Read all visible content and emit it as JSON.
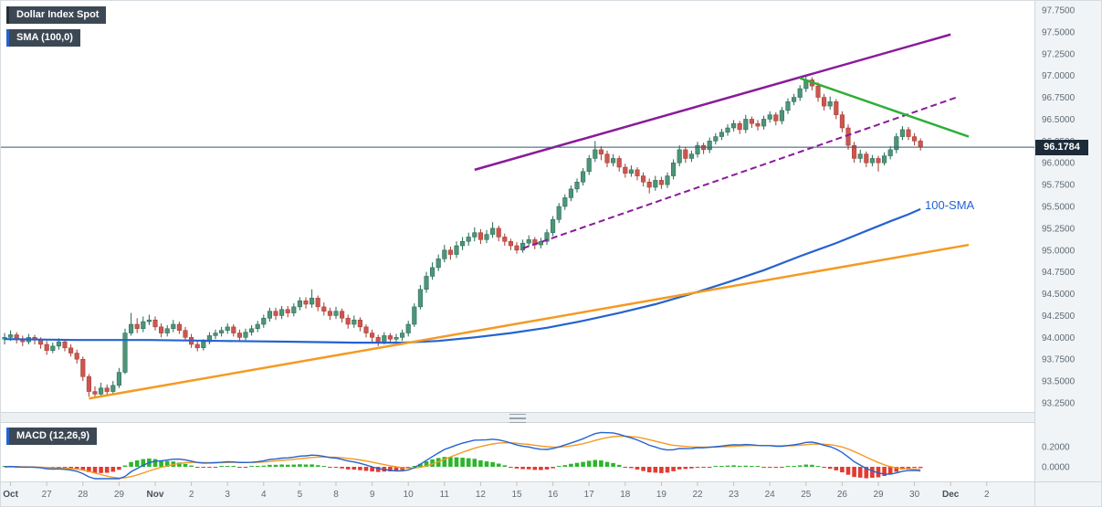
{
  "badges": {
    "symbol": "Dollar Index Spot",
    "sma": "SMA (100,0)",
    "macd": "MACD (12,26,9)"
  },
  "price_badge": {
    "value": "96.1784"
  },
  "annotations": {
    "sma_label": {
      "text": "100-SMA"
    }
  },
  "chart_data": {
    "type": "candlestick",
    "title": "Dollar Index Spot",
    "panels": [
      "price",
      "macd"
    ],
    "price_axis": {
      "max": 97.75,
      "min": 93.25,
      "ticks": [
        "97.7500",
        "97.5000",
        "97.2500",
        "97.0000",
        "96.7500",
        "96.5000",
        "96.2500",
        "96.0000",
        "95.7500",
        "95.5000",
        "95.2500",
        "95.0000",
        "94.7500",
        "94.5000",
        "94.2500",
        "94.0000",
        "93.7500",
        "93.5000",
        "93.2500"
      ]
    },
    "x_axis": {
      "labels": [
        {
          "t": "Oct",
          "i": 1,
          "m": true
        },
        {
          "t": "27",
          "i": 7
        },
        {
          "t": "28",
          "i": 13
        },
        {
          "t": "29",
          "i": 19
        },
        {
          "t": "Nov",
          "i": 25,
          "m": true
        },
        {
          "t": "2",
          "i": 31
        },
        {
          "t": "3",
          "i": 37
        },
        {
          "t": "4",
          "i": 43
        },
        {
          "t": "5",
          "i": 49
        },
        {
          "t": "8",
          "i": 55
        },
        {
          "t": "9",
          "i": 61
        },
        {
          "t": "10",
          "i": 67
        },
        {
          "t": "11",
          "i": 73
        },
        {
          "t": "12",
          "i": 79
        },
        {
          "t": "15",
          "i": 85
        },
        {
          "t": "16",
          "i": 91
        },
        {
          "t": "17",
          "i": 97
        },
        {
          "t": "18",
          "i": 103
        },
        {
          "t": "19",
          "i": 109
        },
        {
          "t": "22",
          "i": 115
        },
        {
          "t": "23",
          "i": 121
        },
        {
          "t": "24",
          "i": 127
        },
        {
          "t": "25",
          "i": 133
        },
        {
          "t": "26",
          "i": 139
        },
        {
          "t": "29",
          "i": 145
        },
        {
          "t": "30",
          "i": 151
        },
        {
          "t": "Dec",
          "i": 157,
          "m": true
        },
        {
          "t": "2",
          "i": 163
        }
      ]
    },
    "colors": {
      "up_fill": "#4e9478",
      "up_stroke": "#226752",
      "down_fill": "#cc564e",
      "down_stroke": "#a23830"
    },
    "candles": [
      [
        93.98,
        94.05,
        93.92,
        94.0
      ],
      [
        94.0,
        94.08,
        93.96,
        94.03
      ],
      [
        94.03,
        94.06,
        93.93,
        93.98
      ],
      [
        93.98,
        94.02,
        93.9,
        93.95
      ],
      [
        93.95,
        94.04,
        93.92,
        94.0
      ],
      [
        94.0,
        94.03,
        93.92,
        93.97
      ],
      [
        93.97,
        94.0,
        93.87,
        93.92
      ],
      [
        93.92,
        93.96,
        93.8,
        93.85
      ],
      [
        93.85,
        93.94,
        93.82,
        93.9
      ],
      [
        93.9,
        93.99,
        93.86,
        93.95
      ],
      [
        93.95,
        93.98,
        93.84,
        93.88
      ],
      [
        93.88,
        93.92,
        93.78,
        93.82
      ],
      [
        93.82,
        93.86,
        93.7,
        93.75
      ],
      [
        93.75,
        93.78,
        93.5,
        93.55
      ],
      [
        93.55,
        93.58,
        93.32,
        93.38
      ],
      [
        93.38,
        93.44,
        93.3,
        93.35
      ],
      [
        93.35,
        93.48,
        93.33,
        93.42
      ],
      [
        93.42,
        93.46,
        93.34,
        93.38
      ],
      [
        93.38,
        93.5,
        93.35,
        93.45
      ],
      [
        93.45,
        93.65,
        93.42,
        93.6
      ],
      [
        93.6,
        94.1,
        93.58,
        94.05
      ],
      [
        94.05,
        94.28,
        94.02,
        94.15
      ],
      [
        94.15,
        94.22,
        94.05,
        94.1
      ],
      [
        94.1,
        94.24,
        94.06,
        94.18
      ],
      [
        94.18,
        94.26,
        94.14,
        94.2
      ],
      [
        94.2,
        94.24,
        94.08,
        94.12
      ],
      [
        94.12,
        94.16,
        94.0,
        94.05
      ],
      [
        94.05,
        94.14,
        94.01,
        94.1
      ],
      [
        94.1,
        94.2,
        94.06,
        94.15
      ],
      [
        94.15,
        94.18,
        94.04,
        94.08
      ],
      [
        94.08,
        94.12,
        93.96,
        94.0
      ],
      [
        94.0,
        94.04,
        93.88,
        93.92
      ],
      [
        93.92,
        93.96,
        93.84,
        93.88
      ],
      [
        93.88,
        93.98,
        93.85,
        93.95
      ],
      [
        93.95,
        94.06,
        93.92,
        94.02
      ],
      [
        94.02,
        94.09,
        93.98,
        94.05
      ],
      [
        94.05,
        94.12,
        94.01,
        94.08
      ],
      [
        94.08,
        94.16,
        94.04,
        94.12
      ],
      [
        94.12,
        94.15,
        94.01,
        94.05
      ],
      [
        94.05,
        94.09,
        93.96,
        94.0
      ],
      [
        94.0,
        94.1,
        93.97,
        94.06
      ],
      [
        94.06,
        94.14,
        94.02,
        94.1
      ],
      [
        94.1,
        94.19,
        94.06,
        94.15
      ],
      [
        94.15,
        94.26,
        94.11,
        94.22
      ],
      [
        94.22,
        94.34,
        94.18,
        94.3
      ],
      [
        94.3,
        94.34,
        94.2,
        94.25
      ],
      [
        94.25,
        94.36,
        94.21,
        94.32
      ],
      [
        94.32,
        94.36,
        94.23,
        94.28
      ],
      [
        94.28,
        94.39,
        94.24,
        94.35
      ],
      [
        94.35,
        94.46,
        94.31,
        94.42
      ],
      [
        94.42,
        94.46,
        94.33,
        94.38
      ],
      [
        94.38,
        94.55,
        94.34,
        94.45
      ],
      [
        94.45,
        94.48,
        94.3,
        94.35
      ],
      [
        94.35,
        94.4,
        94.25,
        94.3
      ],
      [
        94.3,
        94.34,
        94.2,
        94.25
      ],
      [
        94.25,
        94.35,
        94.21,
        94.3
      ],
      [
        94.3,
        94.33,
        94.17,
        94.22
      ],
      [
        94.22,
        94.26,
        94.1,
        94.15
      ],
      [
        94.15,
        94.25,
        94.11,
        94.2
      ],
      [
        94.2,
        94.23,
        94.07,
        94.12
      ],
      [
        94.12,
        94.15,
        94.0,
        94.05
      ],
      [
        94.05,
        94.09,
        93.95,
        94.0
      ],
      [
        94.0,
        94.03,
        93.9,
        93.95
      ],
      [
        93.95,
        94.06,
        93.92,
        94.02
      ],
      [
        94.02,
        94.05,
        93.93,
        93.98
      ],
      [
        93.98,
        94.04,
        93.94,
        94.0
      ],
      [
        94.0,
        94.09,
        93.96,
        94.05
      ],
      [
        94.05,
        94.19,
        94.01,
        94.15
      ],
      [
        94.15,
        94.39,
        94.12,
        94.35
      ],
      [
        94.35,
        94.6,
        94.32,
        94.55
      ],
      [
        94.55,
        94.75,
        94.51,
        94.7
      ],
      [
        94.7,
        94.86,
        94.66,
        94.8
      ],
      [
        94.8,
        94.95,
        94.76,
        94.9
      ],
      [
        94.9,
        95.06,
        94.86,
        95.0
      ],
      [
        95.0,
        95.04,
        94.89,
        94.95
      ],
      [
        94.95,
        95.1,
        94.91,
        95.05
      ],
      [
        95.05,
        95.15,
        95.0,
        95.1
      ],
      [
        95.1,
        95.2,
        95.05,
        95.15
      ],
      [
        95.15,
        95.26,
        95.1,
        95.2
      ],
      [
        95.2,
        95.24,
        95.07,
        95.12
      ],
      [
        95.12,
        95.23,
        95.08,
        95.18
      ],
      [
        95.18,
        95.32,
        95.14,
        95.25
      ],
      [
        95.25,
        95.28,
        95.1,
        95.15
      ],
      [
        95.15,
        95.19,
        95.05,
        95.1
      ],
      [
        95.1,
        95.13,
        95.0,
        95.05
      ],
      [
        95.05,
        95.09,
        94.96,
        95.0
      ],
      [
        95.0,
        95.12,
        94.97,
        95.08
      ],
      [
        95.08,
        95.17,
        95.04,
        95.12
      ],
      [
        95.12,
        95.15,
        95.01,
        95.06
      ],
      [
        95.06,
        95.14,
        95.02,
        95.1
      ],
      [
        95.1,
        95.24,
        95.06,
        95.2
      ],
      [
        95.2,
        95.39,
        95.16,
        95.35
      ],
      [
        95.35,
        95.54,
        95.31,
        95.5
      ],
      [
        95.5,
        95.64,
        95.46,
        95.6
      ],
      [
        95.6,
        95.74,
        95.56,
        95.7
      ],
      [
        95.7,
        95.82,
        95.66,
        95.78
      ],
      [
        95.78,
        95.94,
        95.74,
        95.9
      ],
      [
        95.9,
        96.09,
        95.86,
        96.05
      ],
      [
        96.05,
        96.25,
        96.01,
        96.15
      ],
      [
        96.15,
        96.19,
        96.03,
        96.1
      ],
      [
        96.1,
        96.14,
        95.95,
        96.0
      ],
      [
        96.0,
        96.1,
        95.96,
        96.05
      ],
      [
        96.05,
        96.08,
        95.9,
        95.95
      ],
      [
        95.95,
        95.99,
        95.83,
        95.88
      ],
      [
        95.88,
        95.97,
        95.84,
        95.92
      ],
      [
        95.92,
        95.95,
        95.8,
        95.85
      ],
      [
        95.85,
        95.89,
        95.73,
        95.78
      ],
      [
        95.78,
        95.82,
        95.65,
        95.72
      ],
      [
        95.72,
        95.85,
        95.68,
        95.8
      ],
      [
        95.8,
        95.84,
        95.7,
        95.75
      ],
      [
        95.75,
        95.89,
        95.71,
        95.85
      ],
      [
        95.85,
        96.04,
        95.81,
        96.0
      ],
      [
        96.0,
        96.2,
        95.96,
        96.15
      ],
      [
        96.15,
        96.18,
        96.0,
        96.05
      ],
      [
        96.05,
        96.14,
        96.01,
        96.1
      ],
      [
        96.1,
        96.24,
        96.06,
        96.2
      ],
      [
        96.2,
        96.23,
        96.1,
        96.15
      ],
      [
        96.15,
        96.29,
        96.11,
        96.25
      ],
      [
        96.25,
        96.34,
        96.21,
        96.3
      ],
      [
        96.3,
        96.39,
        96.26,
        96.35
      ],
      [
        96.35,
        96.44,
        96.31,
        96.4
      ],
      [
        96.4,
        96.49,
        96.36,
        96.45
      ],
      [
        96.45,
        96.48,
        96.33,
        96.38
      ],
      [
        96.38,
        96.55,
        96.34,
        96.5
      ],
      [
        96.5,
        96.53,
        96.4,
        96.45
      ],
      [
        96.45,
        96.49,
        96.37,
        96.42
      ],
      [
        96.42,
        96.54,
        96.38,
        96.5
      ],
      [
        96.5,
        96.59,
        96.46,
        96.55
      ],
      [
        96.55,
        96.58,
        96.43,
        96.48
      ],
      [
        96.48,
        96.64,
        96.44,
        96.6
      ],
      [
        96.6,
        96.74,
        96.56,
        96.7
      ],
      [
        96.7,
        96.79,
        96.66,
        96.75
      ],
      [
        96.75,
        96.89,
        96.71,
        96.85
      ],
      [
        96.85,
        97.0,
        96.81,
        96.95
      ],
      [
        96.95,
        96.98,
        96.83,
        96.88
      ],
      [
        96.88,
        96.92,
        96.7,
        96.75
      ],
      [
        96.75,
        96.79,
        96.6,
        96.65
      ],
      [
        96.65,
        96.76,
        96.61,
        96.7
      ],
      [
        96.7,
        96.73,
        96.5,
        96.55
      ],
      [
        96.55,
        96.59,
        96.35,
        96.4
      ],
      [
        96.4,
        96.44,
        96.15,
        96.2
      ],
      [
        96.2,
        96.24,
        96.0,
        96.05
      ],
      [
        96.05,
        96.15,
        96.0,
        96.1
      ],
      [
        96.1,
        96.13,
        95.95,
        96.0
      ],
      [
        96.0,
        96.09,
        95.96,
        96.05
      ],
      [
        96.05,
        96.08,
        95.9,
        96.0
      ],
      [
        96.0,
        96.12,
        95.97,
        96.08
      ],
      [
        96.08,
        96.19,
        96.04,
        96.15
      ],
      [
        96.15,
        96.34,
        96.11,
        96.3
      ],
      [
        96.3,
        96.42,
        96.26,
        96.38
      ],
      [
        96.38,
        96.41,
        96.26,
        96.3
      ],
      [
        96.3,
        96.34,
        96.2,
        96.25
      ],
      [
        96.25,
        96.28,
        96.14,
        96.18
      ]
    ],
    "overlays": {
      "sma100": {
        "name": "100-SMA",
        "color": "#2563cf",
        "points": [
          [
            0,
            93.98
          ],
          [
            12,
            93.97
          ],
          [
            24,
            93.97
          ],
          [
            36,
            93.96
          ],
          [
            48,
            93.95
          ],
          [
            58,
            93.94
          ],
          [
            66,
            93.94
          ],
          [
            72,
            93.96
          ],
          [
            78,
            94.0
          ],
          [
            84,
            94.05
          ],
          [
            90,
            94.11
          ],
          [
            96,
            94.19
          ],
          [
            102,
            94.28
          ],
          [
            108,
            94.38
          ],
          [
            114,
            94.5
          ],
          [
            120,
            94.63
          ],
          [
            126,
            94.77
          ],
          [
            132,
            94.93
          ],
          [
            138,
            95.08
          ],
          [
            143,
            95.22
          ],
          [
            147,
            95.33
          ],
          [
            150,
            95.41
          ],
          [
            152,
            95.47
          ]
        ]
      },
      "trendlines": [
        {
          "name": "support-orange",
          "color": "#f59a23",
          "width": 2.5,
          "from": [
            14,
            93.3
          ],
          "to": [
            160,
            95.06
          ]
        },
        {
          "name": "channel-upper-purple",
          "color": "#8b1a9b",
          "width": 2.5,
          "from": [
            78,
            95.92
          ],
          "to": [
            157,
            97.47
          ]
        },
        {
          "name": "channel-lower-purple-dashed",
          "color": "#8b1a9b",
          "width": 2,
          "dash": "7,4",
          "from": [
            86,
            95.02
          ],
          "to": [
            158,
            96.75
          ]
        },
        {
          "name": "resistance-green",
          "color": "#2fae38",
          "width": 2.5,
          "from": [
            132,
            96.97
          ],
          "to": [
            160,
            96.3
          ]
        }
      ],
      "current_price": {
        "value": 96.1784,
        "line_color": "#2f5876"
      }
    },
    "macd": {
      "params": [
        12,
        26,
        9
      ],
      "ticks": [
        {
          "t": "0.2000",
          "v": 0.2
        },
        {
          "t": "0.0000",
          "v": 0.0
        }
      ],
      "macd_color": "#2563cf",
      "signal_color": "#f59a23",
      "hist_up": "#2db52d",
      "hist_down": "#e23b32"
    }
  }
}
